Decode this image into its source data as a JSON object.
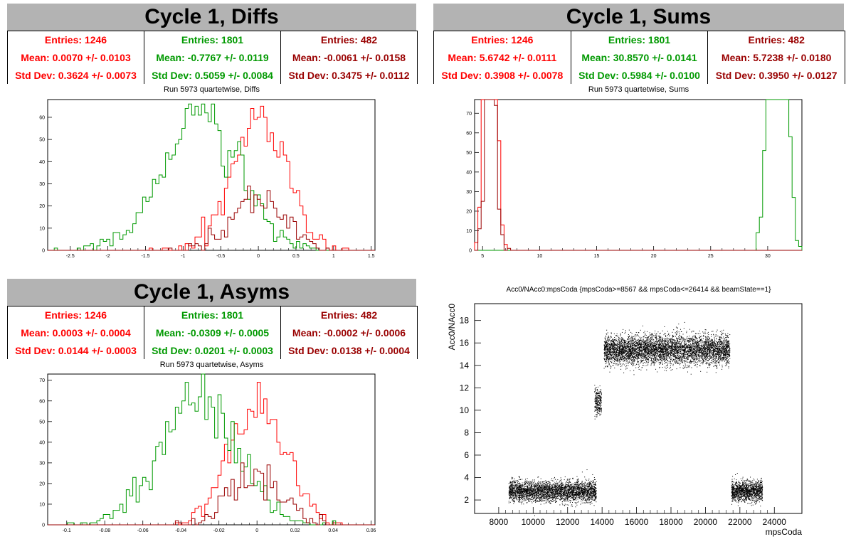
{
  "panels": {
    "diffs": {
      "title": "Cycle 1, Diffs",
      "subtitle": "Run 5973 quartetwise, Diffs",
      "stats": [
        {
          "entries": "Entries: 1246",
          "mean": "Mean: 0.0070 +/- 0.0103",
          "std": "Std Dev: 0.3624 +/- 0.0073",
          "color": "#ff0000"
        },
        {
          "entries": "Entries: 1801",
          "mean": "Mean: -0.7767 +/- 0.0119",
          "std": "Std Dev: 0.5059 +/- 0.0084",
          "color": "#009900"
        },
        {
          "entries": "Entries: 482",
          "mean": "Mean: -0.0061 +/- 0.0158",
          "std": "Std Dev: 0.3475 +/- 0.0112",
          "color": "#990000"
        }
      ]
    },
    "sums": {
      "title": "Cycle 1, Sums",
      "subtitle": "Run 5973 quartetwise, Sums",
      "stats": [
        {
          "entries": "Entries: 1246",
          "mean": "Mean: 5.6742 +/- 0.0111",
          "std": "Std Dev: 0.3908 +/- 0.0078",
          "color": "#ff0000"
        },
        {
          "entries": "Entries: 1801",
          "mean": "Mean: 30.8570 +/- 0.0141",
          "std": "Std Dev: 0.5984 +/- 0.0100",
          "color": "#009900"
        },
        {
          "entries": "Entries: 482",
          "mean": "Mean: 5.7238 +/- 0.0180",
          "std": "Std Dev: 0.3950 +/- 0.0127",
          "color": "#990000"
        }
      ]
    },
    "asyms": {
      "title": "Cycle 1, Asyms",
      "subtitle": "Run 5973 quartetwise, Asyms",
      "stats": [
        {
          "entries": "Entries: 1246",
          "mean": "Mean: 0.0003 +/- 0.0004",
          "std": "Std Dev: 0.0144 +/- 0.0003",
          "color": "#ff0000"
        },
        {
          "entries": "Entries: 1801",
          "mean": "Mean: -0.0309 +/- 0.0005",
          "std": "Std Dev: 0.0201 +/- 0.0003",
          "color": "#009900"
        },
        {
          "entries": "Entries: 482",
          "mean": "Mean: -0.0002 +/- 0.0006",
          "std": "Std Dev: 0.0138 +/- 0.0004",
          "color": "#990000"
        }
      ]
    },
    "scatter": {
      "title": "Acc0/NAcc0:mpsCoda {mpsCoda>=8567 && mpsCoda<=26414 && beamState==1}"
    }
  },
  "chart_data": [
    {
      "id": "diffs",
      "type": "histogram",
      "xlim": [
        -2.8,
        1.55
      ],
      "ylim": [
        0,
        68
      ],
      "xticks": [
        -2.5,
        -2,
        -1.5,
        -1,
        -0.5,
        0,
        0.5,
        1,
        1.5
      ],
      "xtick_labels": [
        "-2.5",
        "-2",
        "-1.5",
        "-1",
        "-0.5",
        "0",
        "0.5",
        "1",
        "1.5"
      ],
      "yticks": [
        0,
        10,
        20,
        30,
        40,
        50,
        60
      ],
      "series": [
        {
          "mean": 0.007,
          "std": 0.3624,
          "entries": 1246,
          "color": "#ff0000"
        },
        {
          "mean": -0.7767,
          "std": 0.5059,
          "entries": 1801,
          "color": "#009900"
        },
        {
          "mean": -0.0061,
          "std": 0.3475,
          "entries": 482,
          "color": "#990000"
        }
      ]
    },
    {
      "id": "sums",
      "type": "histogram",
      "xlim": [
        4.3,
        33
      ],
      "ylim": [
        0,
        77
      ],
      "xticks": [
        5,
        10,
        15,
        20,
        25,
        30
      ],
      "xtick_labels": [
        "5",
        "10",
        "15",
        "20",
        "25",
        "30"
      ],
      "yticks": [
        0,
        10,
        20,
        30,
        40,
        50,
        60,
        70
      ],
      "series": [
        {
          "mean": 5.6742,
          "std": 0.3908,
          "entries": 1246,
          "color": "#ff0000"
        },
        {
          "mean": 30.857,
          "std": 0.5984,
          "entries": 1801,
          "color": "#009900"
        },
        {
          "mean": 5.7238,
          "std": 0.395,
          "entries": 482,
          "color": "#990000"
        }
      ]
    },
    {
      "id": "asyms",
      "type": "histogram",
      "xlim": [
        -0.11,
        0.062
      ],
      "ylim": [
        0,
        73
      ],
      "xticks": [
        -0.1,
        -0.08,
        -0.06,
        -0.04,
        -0.02,
        0,
        0.02,
        0.04,
        0.06
      ],
      "xtick_labels": [
        "-0.1",
        "-0.08",
        "-0.06",
        "-0.04",
        "-0.02",
        "0",
        "0.02",
        "0.04",
        "0.06"
      ],
      "yticks": [
        0,
        10,
        20,
        30,
        40,
        50,
        60,
        70
      ],
      "series": [
        {
          "mean": 0.0003,
          "std": 0.0144,
          "entries": 1246,
          "color": "#ff0000"
        },
        {
          "mean": -0.0309,
          "std": 0.0201,
          "entries": 1801,
          "color": "#009900"
        },
        {
          "mean": -0.0002,
          "std": 0.0138,
          "entries": 482,
          "color": "#990000"
        }
      ]
    },
    {
      "id": "scatter",
      "type": "scatter",
      "xlabel": "mpsCoda",
      "ylabel": "Acc0/NAcc0",
      "xlim": [
        6600,
        25600
      ],
      "ylim": [
        0.8,
        19.5
      ],
      "xticks": [
        8000,
        10000,
        12000,
        14000,
        16000,
        18000,
        20000,
        22000,
        24000
      ],
      "xtick_labels": [
        "8000",
        "10000",
        "12000",
        "14000",
        "16000",
        "18000",
        "20000",
        "22000",
        "24000"
      ],
      "yticks": [
        2,
        4,
        6,
        8,
        10,
        12,
        14,
        16,
        18
      ],
      "ytick_labels": [
        "2",
        "4",
        "6",
        "8",
        "10",
        "12",
        "14",
        "16",
        "18"
      ],
      "color": "#000000",
      "clusters": [
        {
          "x_range": [
            8567,
            13650
          ],
          "y_center": 2.8,
          "y_spread": 0.45,
          "count": 3200
        },
        {
          "x_range": [
            13550,
            13950
          ],
          "y_center": 10.8,
          "y_spread": 0.6,
          "count": 260
        },
        {
          "x_range": [
            14100,
            21400
          ],
          "y_center": 15.4,
          "y_spread": 0.65,
          "count": 5200
        },
        {
          "x_range": [
            21500,
            23300
          ],
          "y_center": 2.8,
          "y_spread": 0.45,
          "count": 1300
        }
      ]
    }
  ]
}
